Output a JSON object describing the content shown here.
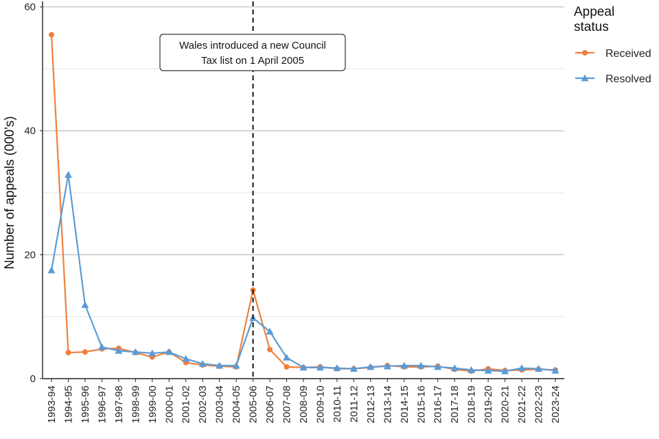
{
  "chart_data": {
    "type": "line",
    "categories": [
      "1993-94",
      "1994-95",
      "1995-96",
      "1996-97",
      "1997-98",
      "1998-99",
      "1999-00",
      "2000-01",
      "2001-02",
      "2002-03",
      "2003-04",
      "2004-05",
      "2005-06",
      "2006-07",
      "2007-08",
      "2008-09",
      "2009-10",
      "2010-11",
      "2011-12",
      "2012-13",
      "2013-14",
      "2014-15",
      "2015-16",
      "2016-17",
      "2017-18",
      "2018-19",
      "2019-20",
      "2020-21",
      "2021-22",
      "2022-23",
      "2023-24"
    ],
    "series": [
      {
        "name": "Received",
        "color": "#F07F3C",
        "marker": "circle",
        "values": [
          55.5,
          4.2,
          4.3,
          4.8,
          4.9,
          4.2,
          3.5,
          4.3,
          2.6,
          2.2,
          2.0,
          1.9,
          14.3,
          4.7,
          1.9,
          1.8,
          1.9,
          1.6,
          1.6,
          1.8,
          2.1,
          1.9,
          1.9,
          2.0,
          1.5,
          1.2,
          1.6,
          1.3,
          1.4,
          1.5,
          1.4
        ]
      },
      {
        "name": "Resolved",
        "color": "#5B9BD5",
        "marker": "triangle",
        "values": [
          17.5,
          32.9,
          11.9,
          5.1,
          4.5,
          4.3,
          4.1,
          4.3,
          3.2,
          2.4,
          2.1,
          2.1,
          9.8,
          7.6,
          3.4,
          1.8,
          1.8,
          1.7,
          1.6,
          1.9,
          2.0,
          2.1,
          2.1,
          1.9,
          1.7,
          1.4,
          1.3,
          1.2,
          1.7,
          1.6,
          1.3
        ]
      }
    ],
    "ylabel": "Number of appeals (000's)",
    "xlabel": "",
    "ylim": [
      0,
      60
    ],
    "yticks": [
      0,
      20,
      40,
      60
    ],
    "grid": true,
    "legend": {
      "title_line1": "Appeal",
      "title_line2": "status",
      "placement": "right"
    },
    "annotation": {
      "line1": "Wales introduced a new Council",
      "line2": "Tax list on 1 April 2005",
      "category": "2005-06"
    }
  }
}
